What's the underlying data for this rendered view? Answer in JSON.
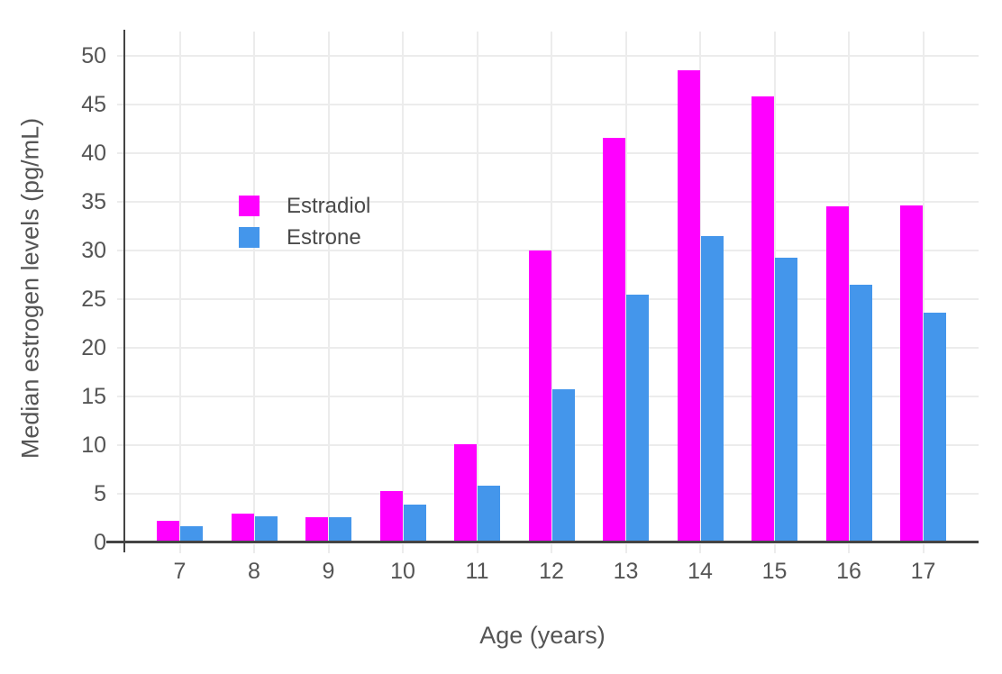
{
  "chart_data": {
    "type": "bar",
    "title": "",
    "categories": [
      "7",
      "8",
      "9",
      "10",
      "11",
      "12",
      "13",
      "14",
      "15",
      "16",
      "17"
    ],
    "series": [
      {
        "name": "Estradiol",
        "color": "#ff00ff",
        "values": [
          2.2,
          3.0,
          2.6,
          5.3,
          10.1,
          30.0,
          41.6,
          48.5,
          45.8,
          34.5,
          34.6
        ]
      },
      {
        "name": "Estrone",
        "color": "#4496eb",
        "values": [
          1.7,
          2.7,
          2.6,
          3.9,
          5.8,
          15.7,
          25.5,
          31.5,
          29.3,
          26.5,
          23.6
        ]
      }
    ],
    "xlabel": "Age (years)",
    "ylabel": "Median estrogen levels (pg/mL)",
    "ylim": [
      0,
      52.5
    ],
    "yticks": [
      0,
      5,
      10,
      15,
      20,
      25,
      30,
      35,
      40,
      45,
      50
    ],
    "grid": true,
    "legend_position": "inside-upper-left",
    "colors": {
      "axis_line": "#444444",
      "gridline": "#ececec",
      "tick_label": "#555555",
      "axis_title": "#555555",
      "legend_text": "#4a4a4a",
      "background": "#ffffff"
    }
  }
}
